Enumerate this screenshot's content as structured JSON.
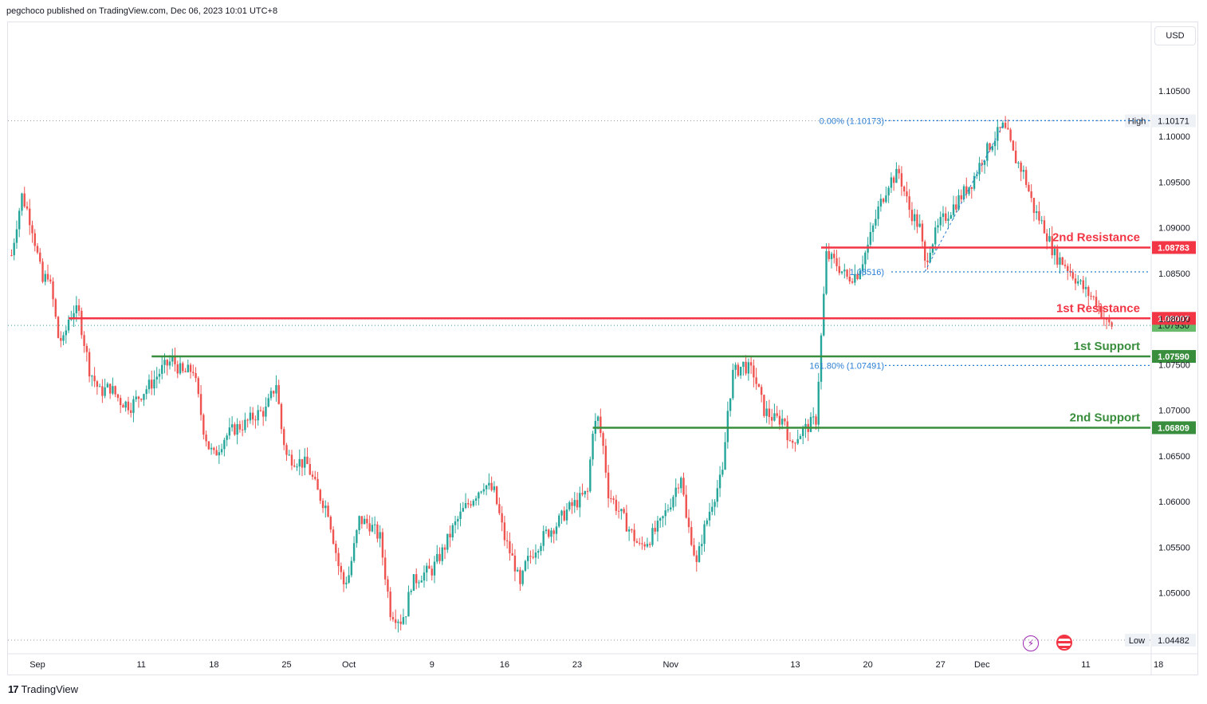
{
  "header": {
    "text": "pegchoco published on TradingView.com, Dec 06, 2023 10:01 UTC+8"
  },
  "currency_label": "USD",
  "footer": {
    "logo": "17",
    "brand": "TradingView"
  },
  "icons": {
    "lightning": "lightning-icon",
    "flag": "us-flag-icon"
  },
  "colors": {
    "up": "#26a69a",
    "down": "#ef5350",
    "resistance": "#f23645",
    "support": "#388e3c",
    "fib": "#2a7fd4"
  },
  "chart_data": {
    "type": "candlestick",
    "symbol_quote": "USD",
    "ylim": [
      1.0435,
      1.1125
    ],
    "y_ticks": [
      "1.10500",
      "1.10000",
      "1.09500",
      "1.09000",
      "1.08500",
      "1.08000",
      "1.07500",
      "1.07000",
      "1.06500",
      "1.06000",
      "1.05500",
      "1.05000"
    ],
    "x_ticks": [
      {
        "label": "Sep",
        "day": 0
      },
      {
        "label": "11",
        "day": 10
      },
      {
        "label": "18",
        "day": 17
      },
      {
        "label": "25",
        "day": 24
      },
      {
        "label": "Oct",
        "day": 30
      },
      {
        "label": "9",
        "day": 38
      },
      {
        "label": "16",
        "day": 45
      },
      {
        "label": "23",
        "day": 52
      },
      {
        "label": "Nov",
        "day": 61
      },
      {
        "label": "13",
        "day": 73
      },
      {
        "label": "20",
        "day": 80
      },
      {
        "label": "27",
        "day": 87
      },
      {
        "label": "Dec",
        "day": 91
      },
      {
        "label": "11",
        "day": 101
      },
      {
        "label": "18",
        "day": 108
      }
    ],
    "path": [
      [
        -2.5,
        1.087
      ],
      [
        -2,
        1.0905
      ],
      [
        -1.5,
        1.0935
      ],
      [
        -1,
        1.092
      ],
      [
        -0.5,
        1.09
      ],
      [
        0,
        1.087
      ],
      [
        0.5,
        1.084
      ],
      [
        1,
        1.085
      ],
      [
        1.5,
        1.082
      ],
      [
        2,
        1.078
      ],
      [
        2.5,
        1.0775
      ],
      [
        3,
        1.08
      ],
      [
        3.5,
        1.081
      ],
      [
        4,
        1.0805
      ],
      [
        5,
        1.0745
      ],
      [
        6,
        1.072
      ],
      [
        7,
        1.0725
      ],
      [
        8,
        1.071
      ],
      [
        9,
        1.0705
      ],
      [
        10,
        1.0718
      ],
      [
        11,
        1.073
      ],
      [
        12,
        1.0745
      ],
      [
        13,
        1.0755
      ],
      [
        14,
        1.074
      ],
      [
        15,
        1.0745
      ],
      [
        16,
        1.068
      ],
      [
        16.5,
        1.066
      ],
      [
        17,
        1.065
      ],
      [
        18,
        1.067
      ],
      [
        19,
        1.068
      ],
      [
        20,
        1.0685
      ],
      [
        21,
        1.0695
      ],
      [
        22,
        1.07
      ],
      [
        23,
        1.073
      ],
      [
        23.5,
        1.068
      ],
      [
        24,
        1.065
      ],
      [
        25,
        1.0645
      ],
      [
        26,
        1.064
      ],
      [
        27,
        1.061
      ],
      [
        28,
        1.059
      ],
      [
        28.5,
        1.056
      ],
      [
        29,
        1.053
      ],
      [
        29.5,
        1.051
      ],
      [
        30,
        1.052
      ],
      [
        31,
        1.058
      ],
      [
        32,
        1.0575
      ],
      [
        33,
        1.056
      ],
      [
        33.5,
        1.052
      ],
      [
        34,
        1.048
      ],
      [
        35,
        1.047
      ],
      [
        35.5,
        1.048
      ],
      [
        36,
        1.051
      ],
      [
        37,
        1.052
      ],
      [
        38,
        1.0525
      ],
      [
        39,
        1.0545
      ],
      [
        40,
        1.057
      ],
      [
        41,
        1.059
      ],
      [
        42,
        1.0605
      ],
      [
        43,
        1.062
      ],
      [
        44,
        1.061
      ],
      [
        45,
        1.056
      ],
      [
        46,
        1.053
      ],
      [
        46.5,
        1.0505
      ],
      [
        47,
        1.053
      ],
      [
        48,
        1.055
      ],
      [
        49,
        1.0565
      ],
      [
        50,
        1.0575
      ],
      [
        51,
        1.059
      ],
      [
        52,
        1.06
      ],
      [
        53,
        1.061
      ],
      [
        53.5,
        1.068
      ],
      [
        54,
        1.069
      ],
      [
        54.5,
        1.066
      ],
      [
        55,
        1.061
      ],
      [
        56,
        1.059
      ],
      [
        57,
        1.057
      ],
      [
        58,
        1.055
      ],
      [
        59,
        1.056
      ],
      [
        60,
        1.0575
      ],
      [
        61,
        1.06
      ],
      [
        62,
        1.063
      ],
      [
        62.5,
        1.058
      ],
      [
        63,
        1.056
      ],
      [
        63.5,
        1.053
      ],
      [
        64,
        1.056
      ],
      [
        65,
        1.06
      ],
      [
        66,
        1.063
      ],
      [
        66.5,
        1.07
      ],
      [
        67,
        1.074
      ],
      [
        68,
        1.075
      ],
      [
        69,
        1.074
      ],
      [
        70,
        1.07
      ],
      [
        71,
        1.069
      ],
      [
        72,
        1.069
      ],
      [
        72.5,
        1.066
      ],
      [
        73,
        1.067
      ],
      [
        74,
        1.068
      ],
      [
        75,
        1.069
      ],
      [
        75.5,
        1.078
      ],
      [
        76,
        1.087
      ],
      [
        77,
        1.086
      ],
      [
        78,
        1.0845
      ],
      [
        79,
        1.085
      ],
      [
        80,
        1.088
      ],
      [
        81,
        1.092
      ],
      [
        82,
        1.095
      ],
      [
        83,
        1.096
      ],
      [
        84,
        1.092
      ],
      [
        85,
        1.09
      ],
      [
        85.5,
        1.086
      ],
      [
        86,
        1.088
      ],
      [
        87,
        1.0905
      ],
      [
        88,
        1.092
      ],
      [
        89,
        1.0935
      ],
      [
        90,
        1.095
      ],
      [
        91,
        1.0975
      ],
      [
        92,
        1.0995
      ],
      [
        93,
        1.101
      ],
      [
        93.5,
        1.1
      ],
      [
        94,
        1.098
      ],
      [
        95,
        1.096
      ],
      [
        96,
        1.092
      ],
      [
        97,
        1.09
      ],
      [
        98,
        1.087
      ],
      [
        99,
        1.086
      ],
      [
        100,
        1.0845
      ],
      [
        101,
        1.083
      ],
      [
        102,
        1.082
      ],
      [
        103,
        1.0795
      ],
      [
        103.5,
        1.0793
      ]
    ],
    "levels": [
      {
        "label": "2nd Resistance",
        "value": "1.08783",
        "y": 1.08783,
        "role": "resistance"
      },
      {
        "label": "1st Resistance",
        "value": "1.08007",
        "y": 1.08007,
        "role": "resistance"
      },
      {
        "label": "1st Support",
        "value": "1.07590",
        "y": 1.0759,
        "role": "support"
      },
      {
        "label": "2nd Support",
        "value": "1.06809",
        "y": 1.06809,
        "role": "support"
      }
    ],
    "fib_levels": [
      {
        "text": "0.00% (1.10173)",
        "y": 1.10173
      },
      {
        "text": "1.08516)",
        "y": 1.08516
      },
      {
        "text": "161.80% (1.07491)",
        "y": 1.07491
      }
    ],
    "price_tags": [
      {
        "text": "High",
        "value": "1.10171",
        "y": 1.10171
      },
      {
        "text": "Low",
        "value": "1.04482",
        "y": 1.04482
      },
      {
        "text": "",
        "value": "1.07930",
        "y": 1.0793,
        "role": "last"
      }
    ]
  }
}
